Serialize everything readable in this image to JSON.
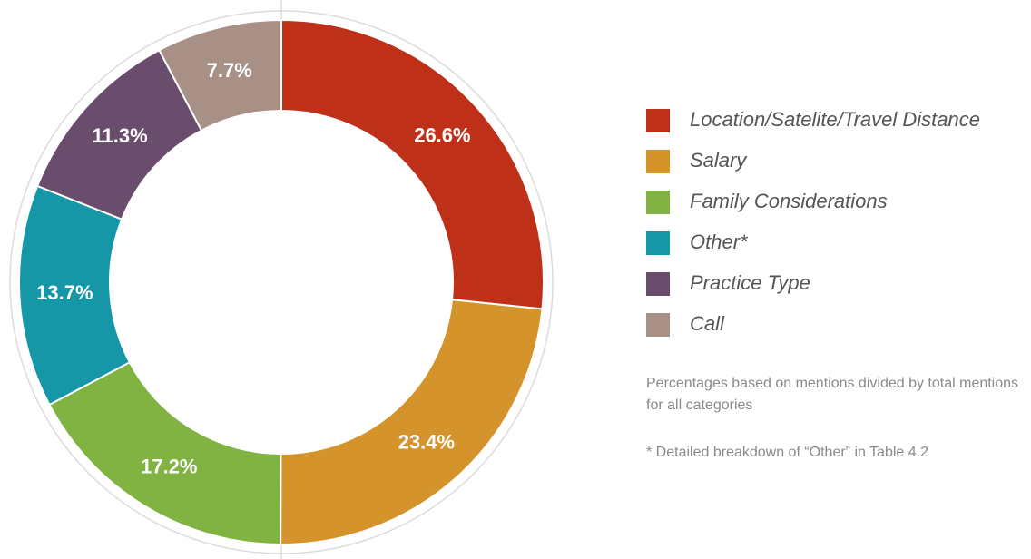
{
  "chart_data": {
    "type": "donut",
    "categories": [
      "Location/Satelite/Travel Distance",
      "Salary",
      "Family Considerations",
      "Other*",
      "Practice Type",
      "Call"
    ],
    "values": [
      26.6,
      23.4,
      17.2,
      13.7,
      11.3,
      7.7
    ],
    "value_labels": [
      "26.6%",
      "23.4%",
      "17.2%",
      "13.7%",
      "11.3%",
      "7.7%"
    ],
    "colors": [
      "#bf3019",
      "#d4932b",
      "#80b341",
      "#1597a7",
      "#6a4c6d",
      "#a89086"
    ],
    "legend": "right",
    "notes": [
      "Percentages based on mentions divided by total mentions for all categories",
      "* Detailed breakdown of “Other” in Table 4.2"
    ]
  }
}
